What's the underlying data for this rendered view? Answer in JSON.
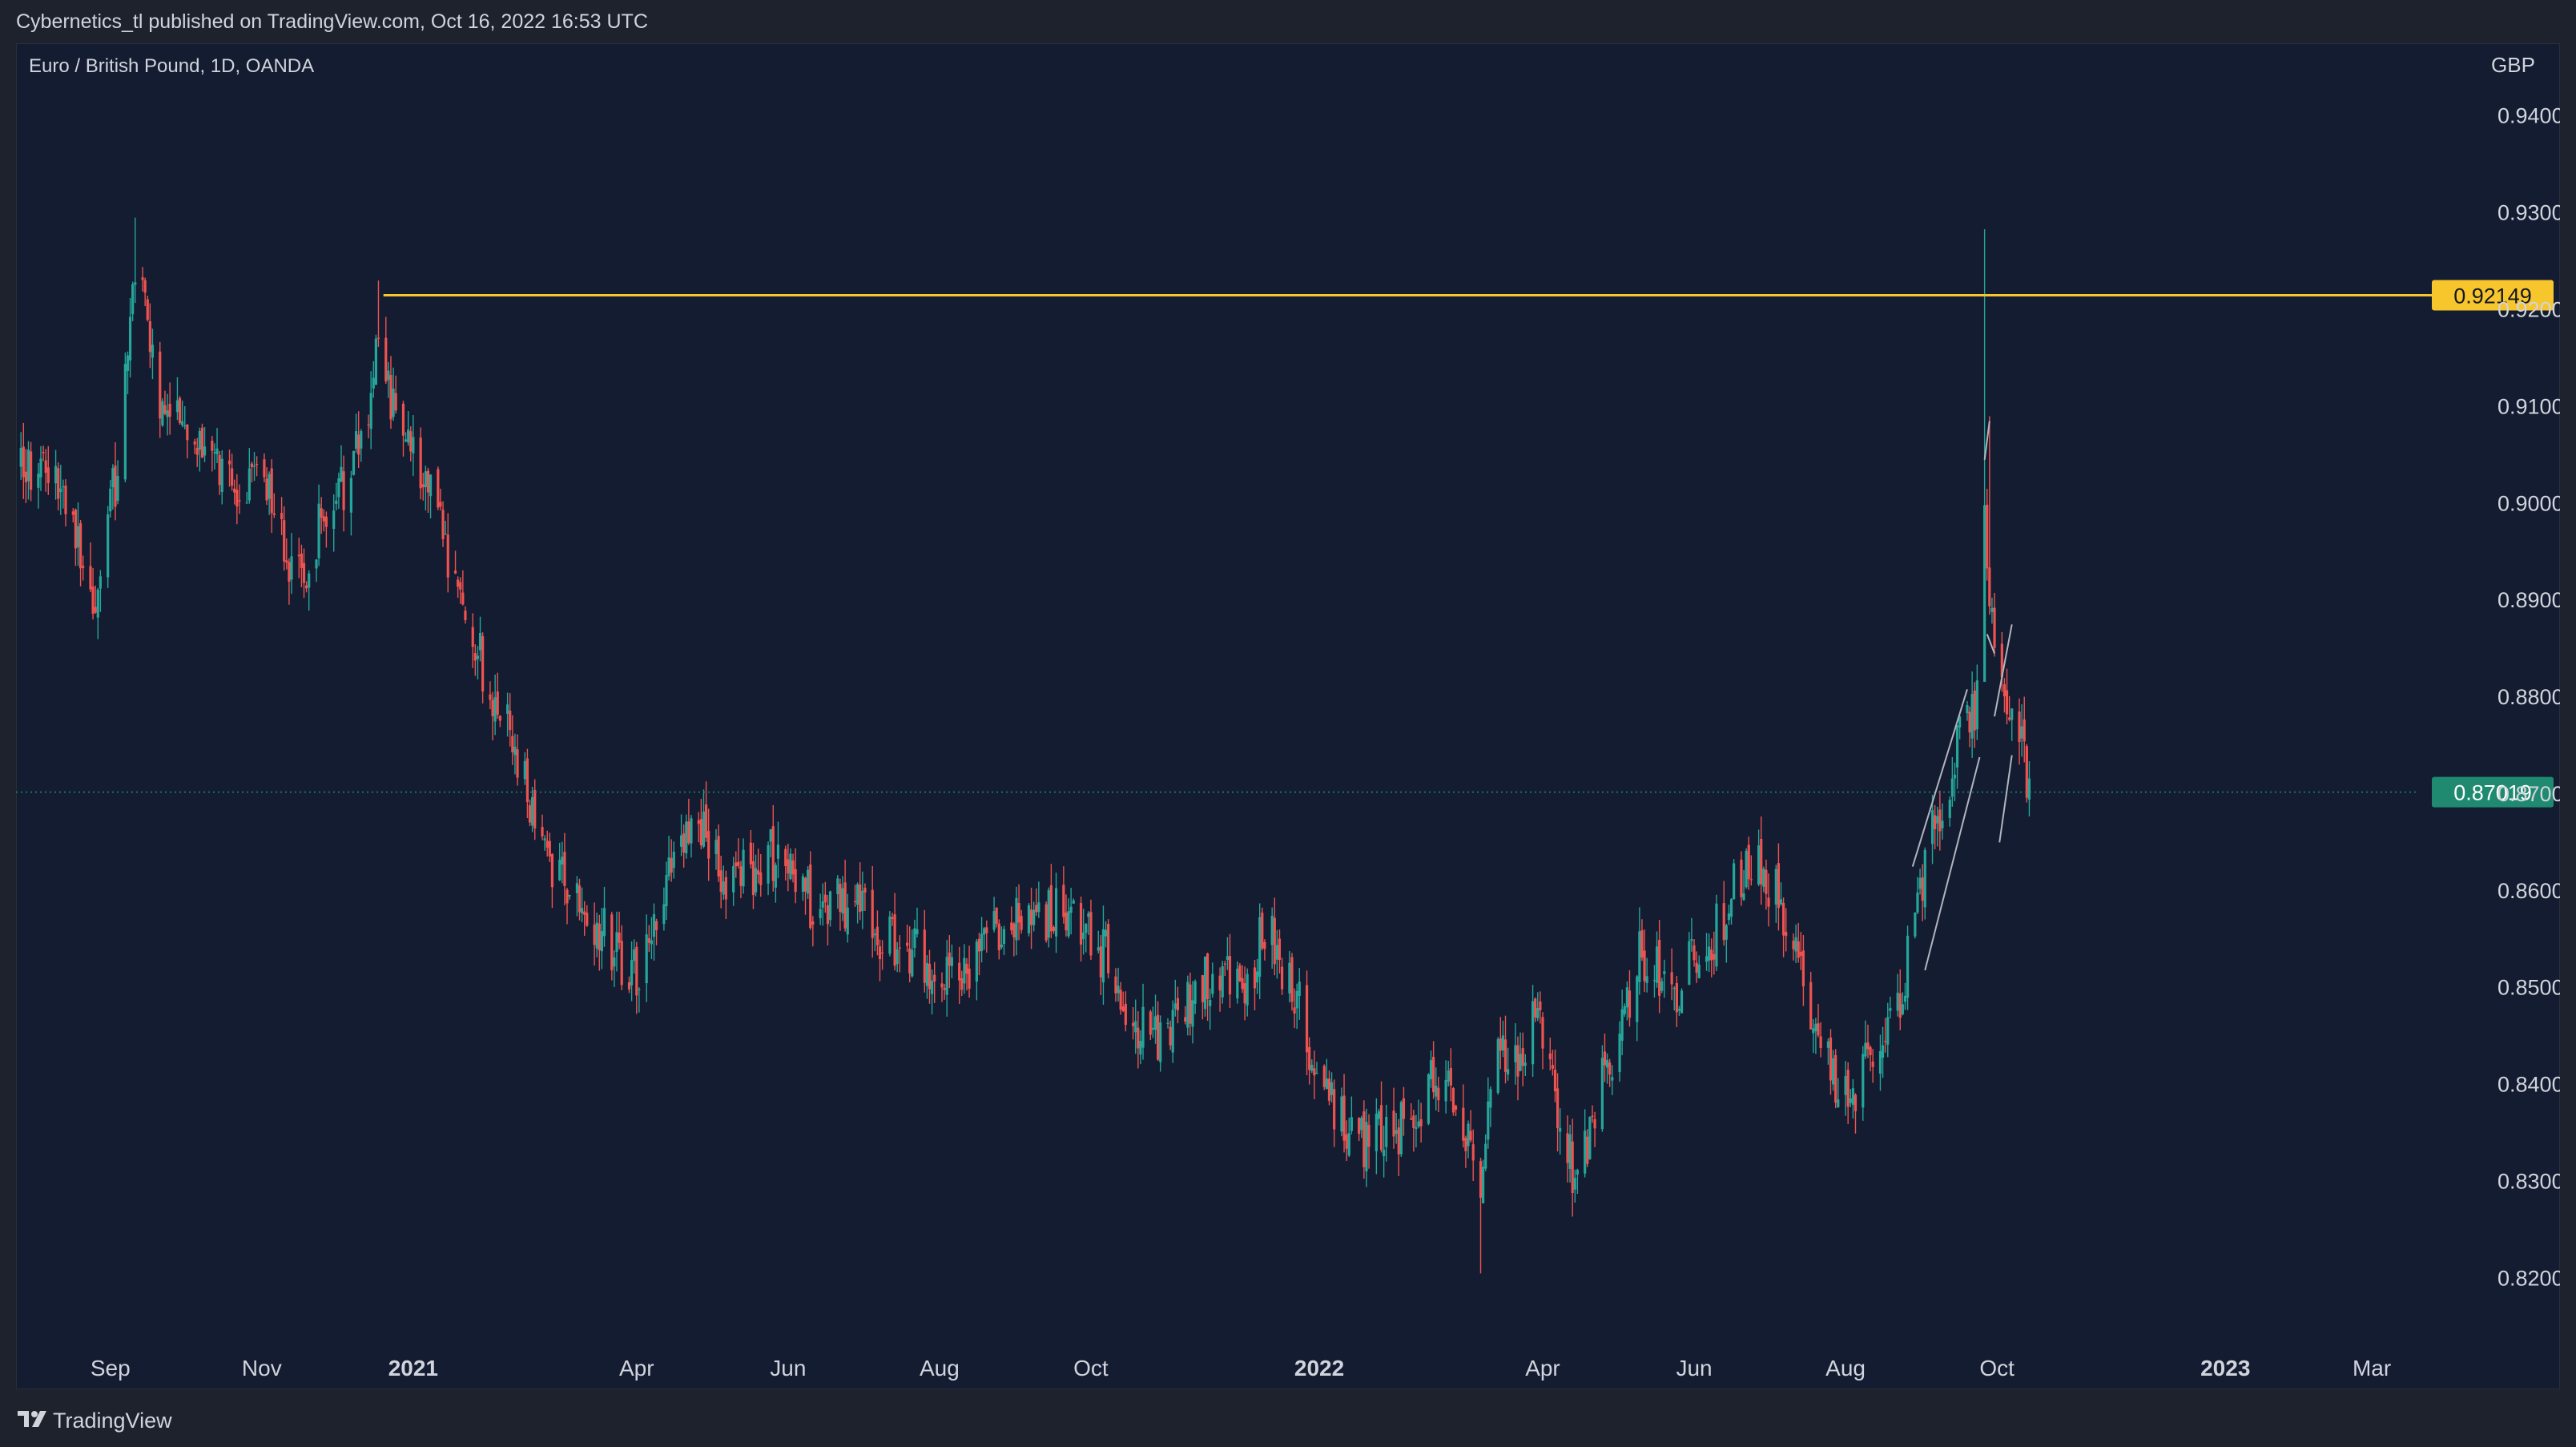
{
  "header": {
    "published_line": "Cybernetics_tl published on TradingView.com, Oct 16, 2022 16:53 UTC"
  },
  "chart_data": {
    "type": "candlestick",
    "symbol_line": "Euro / British Pound, 1D, OANDA",
    "currency": "GBP",
    "y_ticks": [
      "0.94000",
      "0.93000",
      "0.92000",
      "0.91000",
      "0.90000",
      "0.89000",
      "0.88000",
      "0.87000",
      "0.86000",
      "0.85000",
      "0.84000",
      "0.83000",
      "0.82000"
    ],
    "ylim": [
      0.8135,
      0.9475
    ],
    "x_ticks": [
      {
        "label": "Sep",
        "date": "2020-09-01",
        "bold": false
      },
      {
        "label": "Nov",
        "date": "2020-11-01",
        "bold": false
      },
      {
        "label": "2021",
        "date": "2021-01-01",
        "bold": true
      },
      {
        "label": "Apr",
        "date": "2021-04-01",
        "bold": false
      },
      {
        "label": "Jun",
        "date": "2021-06-01",
        "bold": false
      },
      {
        "label": "Aug",
        "date": "2021-08-01",
        "bold": false
      },
      {
        "label": "Oct",
        "date": "2021-10-01",
        "bold": false
      },
      {
        "label": "2022",
        "date": "2022-01-01",
        "bold": true
      },
      {
        "label": "Apr",
        "date": "2022-04-01",
        "bold": false
      },
      {
        "label": "Jun",
        "date": "2022-06-01",
        "bold": false
      },
      {
        "label": "Aug",
        "date": "2022-08-01",
        "bold": false
      },
      {
        "label": "Oct",
        "date": "2022-10-01",
        "bold": false
      },
      {
        "label": "2023",
        "date": "2023-01-01",
        "bold": true
      },
      {
        "label": "Mar",
        "date": "2023-03-01",
        "bold": false
      }
    ],
    "xlim": [
      "2020-07-25",
      "2023-03-20"
    ],
    "close_path": [
      [
        "2020-07-25",
        0.904
      ],
      [
        "2020-08-10",
        0.902
      ],
      [
        "2020-08-25",
        0.89
      ],
      [
        "2020-09-05",
        0.905
      ],
      [
        "2020-09-11",
        0.925
      ],
      [
        "2020-09-20",
        0.912
      ],
      [
        "2020-10-05",
        0.906
      ],
      [
        "2020-10-20",
        0.903
      ],
      [
        "2020-11-05",
        0.9
      ],
      [
        "2020-11-15",
        0.891
      ],
      [
        "2020-11-25",
        0.898
      ],
      [
        "2020-12-10",
        0.905
      ],
      [
        "2020-12-18",
        0.916
      ],
      [
        "2020-12-25",
        0.908
      ],
      [
        "2021-01-08",
        0.903
      ],
      [
        "2021-01-20",
        0.889
      ],
      [
        "2021-02-05",
        0.879
      ],
      [
        "2021-02-18",
        0.868
      ],
      [
        "2021-03-05",
        0.859
      ],
      [
        "2021-03-15",
        0.857
      ],
      [
        "2021-03-25",
        0.853
      ],
      [
        "2021-04-02",
        0.851
      ],
      [
        "2021-04-15",
        0.864
      ],
      [
        "2021-04-25",
        0.869
      ],
      [
        "2021-05-08",
        0.86
      ],
      [
        "2021-05-25",
        0.864
      ],
      [
        "2021-06-10",
        0.859
      ],
      [
        "2021-06-25",
        0.859
      ],
      [
        "2021-07-10",
        0.855
      ],
      [
        "2021-07-25",
        0.853
      ],
      [
        "2021-08-10",
        0.851
      ],
      [
        "2021-08-22",
        0.856
      ],
      [
        "2021-09-10",
        0.858
      ],
      [
        "2021-09-25",
        0.857
      ],
      [
        "2021-10-08",
        0.853
      ],
      [
        "2021-10-20",
        0.845
      ],
      [
        "2021-11-05",
        0.846
      ],
      [
        "2021-11-20",
        0.852
      ],
      [
        "2021-12-01",
        0.849
      ],
      [
        "2021-12-10",
        0.856
      ],
      [
        "2021-12-20",
        0.851
      ],
      [
        "2022-01-05",
        0.838
      ],
      [
        "2022-01-20",
        0.834
      ],
      [
        "2022-02-05",
        0.836
      ],
      [
        "2022-02-15",
        0.84
      ],
      [
        "2022-02-25",
        0.838
      ],
      [
        "2022-03-07",
        0.829
      ],
      [
        "2022-03-12",
        0.843
      ],
      [
        "2022-03-20",
        0.842
      ],
      [
        "2022-03-30",
        0.847
      ],
      [
        "2022-04-14",
        0.83
      ],
      [
        "2022-04-25",
        0.84
      ],
      [
        "2022-05-10",
        0.853
      ],
      [
        "2022-05-25",
        0.85
      ],
      [
        "2022-06-10",
        0.856
      ],
      [
        "2022-06-22",
        0.863
      ],
      [
        "2022-07-05",
        0.86
      ],
      [
        "2022-07-20",
        0.846
      ],
      [
        "2022-08-02",
        0.838
      ],
      [
        "2022-08-12",
        0.844
      ],
      [
        "2022-08-22",
        0.848
      ],
      [
        "2022-09-05",
        0.866
      ],
      [
        "2022-09-15",
        0.875
      ],
      [
        "2022-09-22",
        0.879
      ],
      [
        "2022-09-26",
        0.898
      ],
      [
        "2022-09-30",
        0.885
      ],
      [
        "2022-10-06",
        0.879
      ],
      [
        "2022-10-12",
        0.873
      ],
      [
        "2022-10-14",
        0.87
      ]
    ],
    "horizontal_level": {
      "value": 0.92149,
      "label": "0.92149",
      "start": "2020-12-20",
      "color": "#f7c52c"
    },
    "last_price": {
      "value": 0.87019,
      "label": "0.87019",
      "color": "#1f8a70"
    },
    "colors": {
      "up": "#26a69a",
      "down": "#ef5350",
      "background": "#131c31",
      "text": "#d1d4dc",
      "level": "#f7c52c",
      "trendline": "#b2b5be"
    }
  },
  "footer": {
    "brand": "TradingView",
    "logo_icon": "tradingview-logo-icon"
  }
}
